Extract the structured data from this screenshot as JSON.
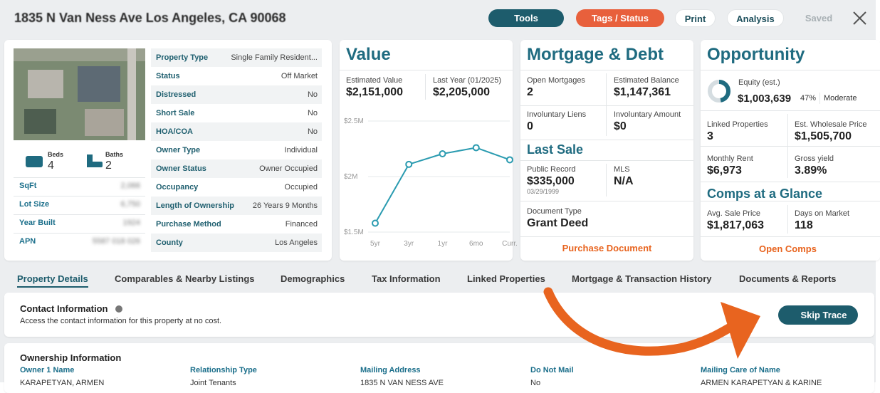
{
  "header": {
    "address": "1835 N Van Ness Ave Los Angeles, CA 90068",
    "buttons": [
      "Tools",
      "Tags / Status",
      "Print",
      "Analysis",
      "Saved"
    ]
  },
  "property": {
    "beds": {
      "label": "Beds",
      "value": "4"
    },
    "baths": {
      "label": "Baths",
      "value": "2"
    },
    "facts": [
      {
        "label": "SqFt",
        "value": "2,066"
      },
      {
        "label": "Lot Size",
        "value": "6,750"
      },
      {
        "label": "Year Built",
        "value": "1924"
      },
      {
        "label": "APN",
        "value": "5587 018 026"
      }
    ],
    "details": [
      {
        "label": "Property Type",
        "value": "Single Family Resident..."
      },
      {
        "label": "Status",
        "value": "Off Market"
      },
      {
        "label": "Distressed",
        "value": "No"
      },
      {
        "label": "Short Sale",
        "value": "No"
      },
      {
        "label": "HOA/COA",
        "value": "No"
      },
      {
        "label": "Owner Type",
        "value": "Individual"
      },
      {
        "label": "Owner Status",
        "value": "Owner Occupied"
      },
      {
        "label": "Occupancy",
        "value": "Occupied"
      },
      {
        "label": "Length of Ownership",
        "value": "26 Years 9 Months"
      },
      {
        "label": "Purchase Method",
        "value": "Financed"
      },
      {
        "label": "County",
        "value": "Los Angeles"
      }
    ]
  },
  "value_card": {
    "title": "Value",
    "cells": [
      {
        "label": "Estimated Value",
        "value": "$2,151,000"
      },
      {
        "label": "Last Year (01/2025)",
        "value": "$2,205,000"
      }
    ],
    "chart": {
      "type": "line",
      "categories": [
        "5yr",
        "3yr",
        "1yr",
        "6mo",
        "Curr."
      ],
      "values": [
        1580000,
        2110000,
        2205000,
        2260000,
        2151000
      ],
      "color": "#2a9bb0",
      "ylim": [
        1500000,
        2500000
      ],
      "yticks": [
        {
          "value": 1500000,
          "label": "$1.5M"
        },
        {
          "value": 2000000,
          "label": "$2M"
        },
        {
          "value": 2500000,
          "label": "$2.5M"
        }
      ],
      "grid": true
    }
  },
  "mortgage_card": {
    "title": "Mortgage & Debt",
    "cells": [
      {
        "label": "Open Mortgages",
        "value": "2"
      },
      {
        "label": "Estimated Balance",
        "value": "$1,147,361"
      },
      {
        "label": "Involuntary Liens",
        "value": "0"
      },
      {
        "label": "Involuntary Amount",
        "value": "$0"
      }
    ],
    "last_sale_title": "Last Sale",
    "sale_cells": [
      {
        "label": "Public Record",
        "value": "$335,000",
        "date": "03/29/1999"
      },
      {
        "label": "MLS",
        "value": "N/A"
      },
      {
        "label": "Document Type",
        "value": "Grant Deed"
      }
    ],
    "link": "Purchase Document"
  },
  "opportunity_card": {
    "title": "Opportunity",
    "equity": {
      "label": "Equity (est.)",
      "value": "$1,003,639",
      "percent": {
        "value": 47,
        "label": "47%"
      },
      "rating": "Moderate"
    },
    "cells": [
      {
        "label": "Linked Properties",
        "value": "3"
      },
      {
        "label": "Est. Wholesale Price",
        "value": "$1,505,700"
      },
      {
        "label": "Monthly Rent",
        "value": "$6,973"
      },
      {
        "label": "Gross yield",
        "value": "3.89%"
      }
    ],
    "comps_title": "Comps at a Glance",
    "comps_cells": [
      {
        "label": "Avg. Sale Price",
        "value": "$1,817,063"
      },
      {
        "label": "Days on Market",
        "value": "118"
      }
    ],
    "link": "Open Comps"
  },
  "tabs": [
    "Property Details",
    "Comparables & Nearby Listings",
    "Demographics",
    "Tax Information",
    "Linked Properties",
    "Mortgage & Transaction History",
    "Documents & Reports"
  ],
  "contact": {
    "title": "Contact Information",
    "description": "Access the contact information for this property at no cost.",
    "button": "Skip Trace"
  },
  "ownership": {
    "title": "Ownership Information",
    "columns": [
      {
        "label": "Owner 1 Name",
        "value": "KARAPETYAN, ARMEN"
      },
      {
        "label": "Relationship Type",
        "value": "Joint Tenants"
      },
      {
        "label": "Mailing Address",
        "value": "1835 N VAN NESS AVE"
      },
      {
        "label": "Do Not Mail",
        "value": "No"
      },
      {
        "label": "Mailing Care of Name",
        "value": "ARMEN KARAPETYAN & KARINE"
      }
    ]
  }
}
